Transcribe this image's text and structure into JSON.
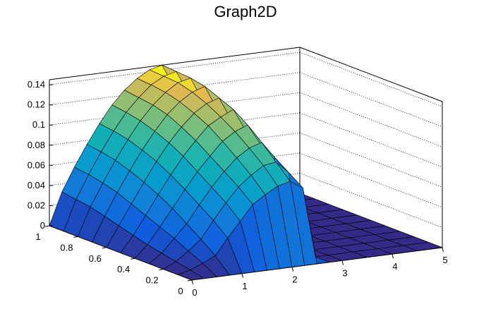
{
  "chart_data": {
    "type": "surface",
    "title": "Graph2D",
    "xlabel": "",
    "ylabel": "",
    "zlabel": "",
    "x_ticks": [
      "0",
      "1",
      "2",
      "3",
      "4",
      "5"
    ],
    "y_ticks": [
      "0",
      "0.2",
      "0.4",
      "0.6",
      "0.8",
      "1"
    ],
    "z_ticks": [
      "0",
      "0.02",
      "0.04",
      "0.06",
      "0.08",
      "0.1",
      "0.12",
      "0.14"
    ],
    "xlim": [
      0,
      5
    ],
    "ylim": [
      0,
      1
    ],
    "zlim": [
      0,
      0.145
    ],
    "grid": "dotted",
    "colormap": "viridis-like",
    "surface_rows_y": [
      0,
      0.1,
      0.2,
      0.3,
      0.4,
      0.5,
      0.6,
      0.7,
      0.8,
      0.9,
      1.0
    ],
    "surface_cols_x": [
      0,
      0.25,
      0.5,
      0.75,
      1.0,
      1.25,
      1.5,
      1.75,
      2.0,
      2.25,
      2.5,
      2.75,
      3.0,
      3.5,
      4.0,
      4.5,
      5.0
    ],
    "surface_z": [
      [
        0,
        0,
        0,
        0,
        0,
        0,
        0,
        0,
        0,
        0,
        0,
        0,
        0,
        0,
        0,
        0,
        0
      ],
      [
        0,
        0.003,
        0.008,
        0.014,
        0.03,
        0.045,
        0.06,
        0.068,
        0.075,
        0.078,
        0.07,
        0,
        0,
        0,
        0,
        0,
        0
      ],
      [
        0,
        0.006,
        0.015,
        0.025,
        0.042,
        0.058,
        0.072,
        0.082,
        0.09,
        0.092,
        0.08,
        0,
        0,
        0,
        0,
        0,
        0
      ],
      [
        0,
        0.009,
        0.022,
        0.035,
        0.052,
        0.068,
        0.082,
        0.094,
        0.102,
        0.106,
        0.09,
        0,
        0,
        0,
        0,
        0,
        0
      ],
      [
        0,
        0.012,
        0.028,
        0.045,
        0.062,
        0.078,
        0.092,
        0.105,
        0.113,
        0.118,
        0.098,
        0,
        0,
        0,
        0,
        0,
        0
      ],
      [
        0,
        0.016,
        0.034,
        0.053,
        0.071,
        0.088,
        0.102,
        0.115,
        0.122,
        0.128,
        0.105,
        0,
        0,
        0,
        0,
        0,
        0
      ],
      [
        0,
        0.02,
        0.04,
        0.06,
        0.079,
        0.096,
        0.11,
        0.122,
        0.13,
        0.134,
        0.11,
        0,
        0,
        0,
        0,
        0,
        0
      ],
      [
        0,
        0.024,
        0.046,
        0.066,
        0.085,
        0.102,
        0.117,
        0.128,
        0.136,
        0.14,
        0.115,
        0,
        0,
        0,
        0,
        0,
        0
      ],
      [
        0,
        0.028,
        0.05,
        0.071,
        0.09,
        0.107,
        0.121,
        0.132,
        0.14,
        0.143,
        0.118,
        0,
        0,
        0,
        0,
        0,
        0
      ],
      [
        0,
        0.03,
        0.053,
        0.074,
        0.093,
        0.11,
        0.123,
        0.134,
        0.141,
        0.144,
        0.12,
        0,
        0,
        0,
        0,
        0,
        0
      ],
      [
        0,
        0.032,
        0.055,
        0.076,
        0.095,
        0.112,
        0.125,
        0.135,
        0.142,
        0.145,
        0.121,
        0,
        0,
        0,
        0,
        0,
        0
      ]
    ]
  }
}
